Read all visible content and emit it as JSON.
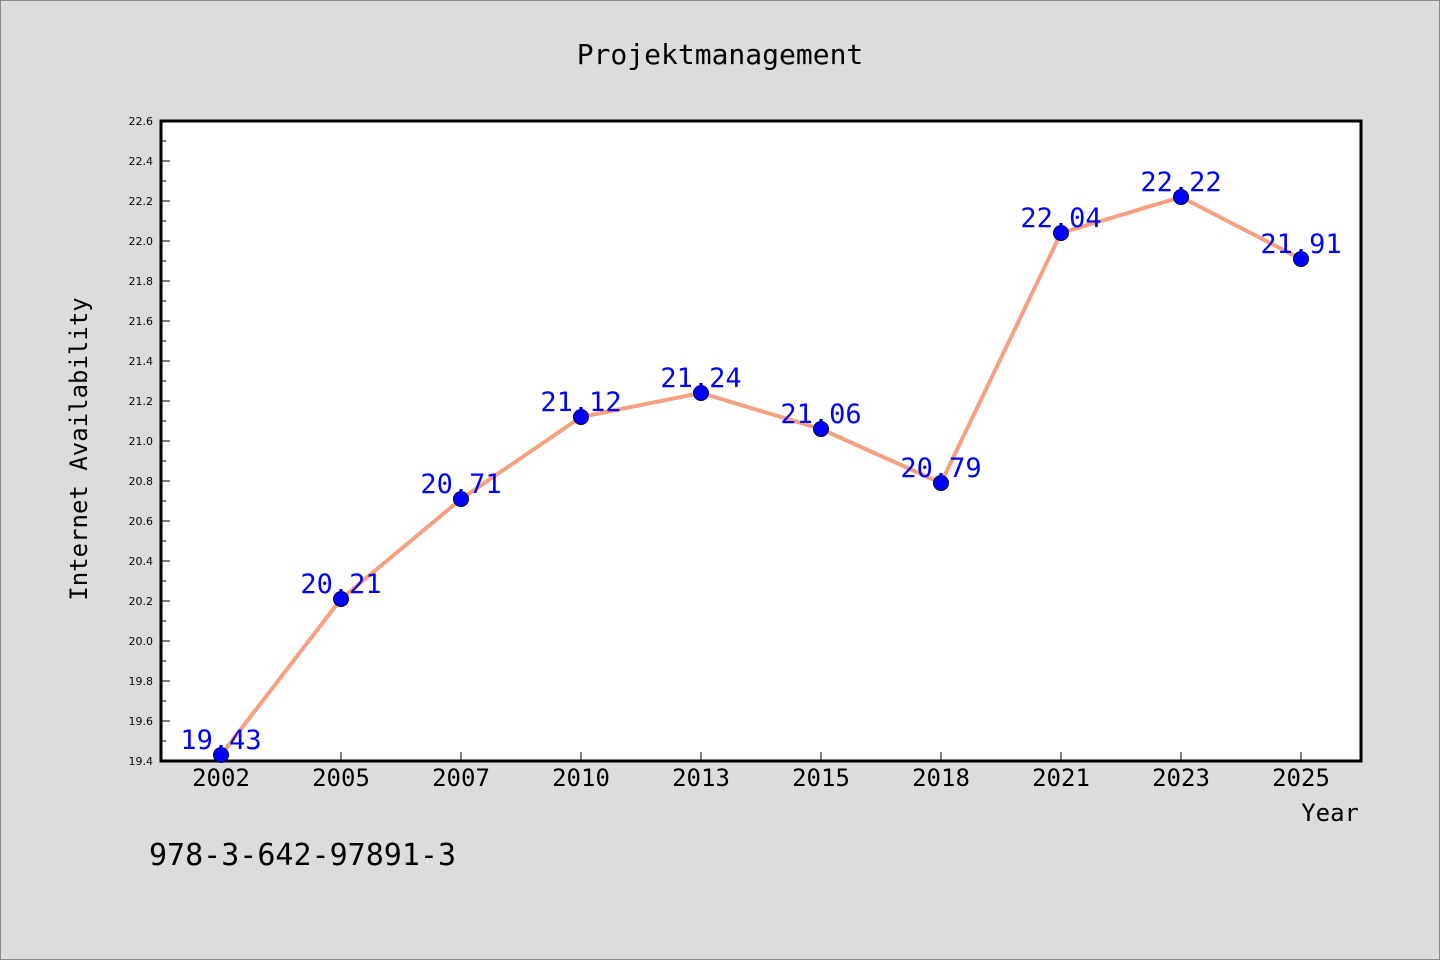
{
  "chart_data": {
    "type": "line",
    "title": "Projektmanagement",
    "xlabel": "Year",
    "ylabel": "Internet Availability",
    "categories": [
      "2002",
      "2005",
      "2007",
      "2010",
      "2013",
      "2015",
      "2018",
      "2021",
      "2023",
      "2025"
    ],
    "series": [
      {
        "values": [
          19.43,
          20.21,
          20.71,
          21.12,
          21.24,
          21.06,
          20.79,
          22.04,
          22.22,
          21.91
        ]
      }
    ],
    "data_labels": [
      "19.43",
      "20.21",
      "20.71",
      "21.12",
      "21.24",
      "21.06",
      "20.79",
      "22.04",
      "22.22",
      "21.91"
    ],
    "ylim": [
      19.4,
      22.6
    ],
    "yticks": [
      "19.4",
      "19.6",
      "19.8",
      "20.0",
      "20.2",
      "20.4",
      "20.6",
      "20.8",
      "21.0",
      "21.2",
      "21.4",
      "21.6",
      "21.8",
      "22.0",
      "22.2",
      "22.4",
      "22.6"
    ],
    "grid": false,
    "legend": "none",
    "line_color": "#f5a080",
    "marker_color": "#0000ff",
    "label_color": "#0000ff",
    "background_color": "#dcdcdc",
    "plot_background_color": "#ffffff"
  },
  "footer": {
    "isbn": "978-3-642-97891-3"
  }
}
